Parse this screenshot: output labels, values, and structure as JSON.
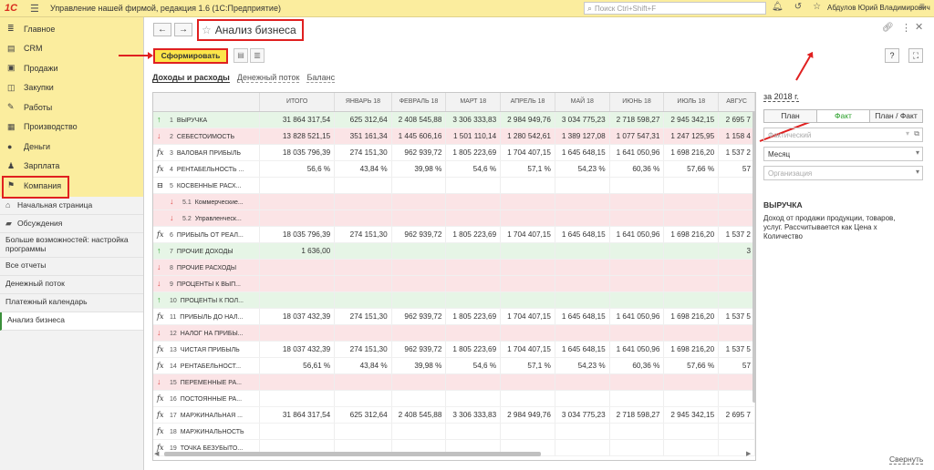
{
  "app": {
    "title": "Управление нашей фирмой, редакция 1.6  (1С:Предприятие)",
    "search_placeholder": "Поиск Ctrl+Shift+F",
    "user": "Абдулов Юрий Владимирович"
  },
  "sidebar": {
    "main": [
      {
        "label": "Главное",
        "icon": "menu-icon"
      },
      {
        "label": "CRM",
        "icon": "crm-icon"
      },
      {
        "label": "Продажи",
        "icon": "cart-icon"
      },
      {
        "label": "Закупки",
        "icon": "purchase-icon"
      },
      {
        "label": "Работы",
        "icon": "wrench-icon"
      },
      {
        "label": "Производство",
        "icon": "factory-icon"
      },
      {
        "label": "Деньги",
        "icon": "money-icon"
      },
      {
        "label": "Зарплата",
        "icon": "people-icon"
      },
      {
        "label": "Компания",
        "icon": "flag-icon"
      }
    ],
    "sub": [
      {
        "label": "Начальная страница"
      },
      {
        "label": "Обсуждения"
      },
      {
        "label": "Больше возможностей: настройка программы"
      },
      {
        "label": "Все отчеты"
      },
      {
        "label": "Денежный поток"
      },
      {
        "label": "Платежный календарь"
      },
      {
        "label": "Анализ бизнеса"
      }
    ]
  },
  "page": {
    "title": "Анализ бизнеса",
    "generate_button": "Сформировать",
    "tabs": [
      "Доходы и расходы",
      "Денежный поток",
      "Баланс"
    ]
  },
  "table": {
    "columns": [
      "ИТОГО",
      "ЯНВАРЬ 18",
      "ФЕВРАЛЬ 18",
      "МАРТ 18",
      "АПРЕЛЬ 18",
      "МАЙ 18",
      "ИЮНЬ 18",
      "ИЮЛЬ 18",
      "АВГУС"
    ],
    "rows": [
      {
        "num": "1",
        "name": "ВЫРУЧКА",
        "icon": "up",
        "style": "green",
        "values": [
          "31 864 317,54",
          "625 312,64",
          "2 408 545,88",
          "3 306 333,83",
          "2 984 949,76",
          "3 034 775,23",
          "2 718 598,27",
          "2 945 342,15",
          "2 695 7"
        ]
      },
      {
        "num": "2",
        "name": "СЕБЕСТОИМОСТЬ",
        "icon": "down",
        "style": "pink",
        "values": [
          "13 828 521,15",
          "351 161,34",
          "1 445 606,16",
          "1 501 110,14",
          "1 280 542,61",
          "1 389 127,08",
          "1 077 547,31",
          "1 247 125,95",
          "1 158 4"
        ]
      },
      {
        "num": "3",
        "name": "ВАЛОВАЯ ПРИБЫЛЬ",
        "icon": "fx",
        "style": "white",
        "values": [
          "18 035 796,39",
          "274 151,30",
          "962 939,72",
          "1 805 223,69",
          "1 704 407,15",
          "1 645 648,15",
          "1 641 050,96",
          "1 698 216,20",
          "1 537 2"
        ]
      },
      {
        "num": "4",
        "name": "РЕНТАБЕЛЬНОСТЬ ...",
        "icon": "fx",
        "style": "white",
        "values": [
          "56,6 %",
          "43,84 %",
          "39,98 %",
          "54,6 %",
          "57,1 %",
          "54,23 %",
          "60,36 %",
          "57,66 %",
          "57"
        ]
      },
      {
        "num": "5",
        "name": "КОСВЕННЫЕ РАСХ...",
        "icon": "group",
        "style": "white",
        "values": [
          "",
          "",
          "",
          "",
          "",
          "",
          "",
          "",
          ""
        ]
      },
      {
        "num": "5.1",
        "name": "Коммерческие...",
        "icon": "down",
        "style": "pink",
        "sub": true,
        "values": [
          "",
          "",
          "",
          "",
          "",
          "",
          "",
          "",
          ""
        ]
      },
      {
        "num": "5.2",
        "name": "Управленческ...",
        "icon": "down",
        "style": "pink",
        "sub": true,
        "values": [
          "",
          "",
          "",
          "",
          "",
          "",
          "",
          "",
          ""
        ]
      },
      {
        "num": "6",
        "name": "ПРИБЫЛЬ ОТ РЕАЛ...",
        "icon": "fx",
        "style": "white",
        "values": [
          "18 035 796,39",
          "274 151,30",
          "962 939,72",
          "1 805 223,69",
          "1 704 407,15",
          "1 645 648,15",
          "1 641 050,96",
          "1 698 216,20",
          "1 537 2"
        ]
      },
      {
        "num": "7",
        "name": "ПРОЧИЕ ДОХОДЫ",
        "icon": "up",
        "style": "green",
        "values": [
          "1 636,00",
          "",
          "",
          "",
          "",
          "",
          "",
          "",
          "3"
        ]
      },
      {
        "num": "8",
        "name": "ПРОЧИЕ РАСХОДЫ",
        "icon": "down",
        "style": "pink",
        "values": [
          "",
          "",
          "",
          "",
          "",
          "",
          "",
          "",
          ""
        ]
      },
      {
        "num": "9",
        "name": "ПРОЦЕНТЫ К ВЫП...",
        "icon": "down",
        "style": "pink",
        "values": [
          "",
          "",
          "",
          "",
          "",
          "",
          "",
          "",
          ""
        ]
      },
      {
        "num": "10",
        "name": "ПРОЦЕНТЫ К ПОЛ...",
        "icon": "up",
        "style": "green",
        "values": [
          "",
          "",
          "",
          "",
          "",
          "",
          "",
          "",
          ""
        ]
      },
      {
        "num": "11",
        "name": "ПРИБЫЛЬ ДО НАЛ...",
        "icon": "fx",
        "style": "white",
        "values": [
          "18 037 432,39",
          "274 151,30",
          "962 939,72",
          "1 805 223,69",
          "1 704 407,15",
          "1 645 648,15",
          "1 641 050,96",
          "1 698 216,20",
          "1 537 5"
        ]
      },
      {
        "num": "12",
        "name": "НАЛОГ НА ПРИБЫ...",
        "icon": "down",
        "style": "pink",
        "values": [
          "",
          "",
          "",
          "",
          "",
          "",
          "",
          "",
          ""
        ]
      },
      {
        "num": "13",
        "name": "ЧИСТАЯ ПРИБЫЛЬ",
        "icon": "fx",
        "style": "white",
        "values": [
          "18 037 432,39",
          "274 151,30",
          "962 939,72",
          "1 805 223,69",
          "1 704 407,15",
          "1 645 648,15",
          "1 641 050,96",
          "1 698 216,20",
          "1 537 5"
        ]
      },
      {
        "num": "14",
        "name": "РЕНТАБЕЛЬНОСТ...",
        "icon": "fx",
        "style": "white",
        "values": [
          "56,61 %",
          "43,84 %",
          "39,98 %",
          "54,6 %",
          "57,1 %",
          "54,23 %",
          "60,36 %",
          "57,66 %",
          "57"
        ]
      },
      {
        "num": "15",
        "name": "ПЕРЕМЕННЫЕ РА...",
        "icon": "down",
        "style": "pink",
        "values": [
          "",
          "",
          "",
          "",
          "",
          "",
          "",
          "",
          ""
        ]
      },
      {
        "num": "16",
        "name": "ПОСТОЯННЫЕ РА...",
        "icon": "fx",
        "style": "white",
        "values": [
          "",
          "",
          "",
          "",
          "",
          "",
          "",
          "",
          ""
        ]
      },
      {
        "num": "17",
        "name": "МАРЖИНАЛЬНАЯ ...",
        "icon": "fx",
        "style": "white",
        "values": [
          "31 864 317,54",
          "625 312,64",
          "2 408 545,88",
          "3 306 333,83",
          "2 984 949,76",
          "3 034 775,23",
          "2 718 598,27",
          "2 945 342,15",
          "2 695 7"
        ]
      },
      {
        "num": "18",
        "name": "МАРЖИНАЛЬНОСТЬ",
        "icon": "fx",
        "style": "white",
        "values": [
          "",
          "",
          "",
          "",
          "",
          "",
          "",
          "",
          ""
        ]
      },
      {
        "num": "19",
        "name": "ТОЧКА БЕЗУБЫТО...",
        "icon": "fx",
        "style": "white",
        "values": [
          "",
          "",
          "",
          "",
          "",
          "",
          "",
          "",
          ""
        ]
      }
    ]
  },
  "panel": {
    "period": "за 2018 г.",
    "modes": [
      "План",
      "Факт",
      "План / Факт"
    ],
    "active_mode": "Факт",
    "scenario_placeholder": "Фактический",
    "period_type": "Месяц",
    "org_placeholder": "Организация",
    "desc_title": "ВЫРУЧКА",
    "desc_text": "Доход от продажи продукции, товаров, услуг.  Рассчитывается как Цена х Количество",
    "collapse": "Свернуть"
  },
  "colors": {
    "accent_yellow": "#fbed9e",
    "button_yellow": "#fce54a",
    "highlight_red": "#e02020",
    "green_row": "#e6f5e6",
    "pink_row": "#fbe4e6"
  }
}
